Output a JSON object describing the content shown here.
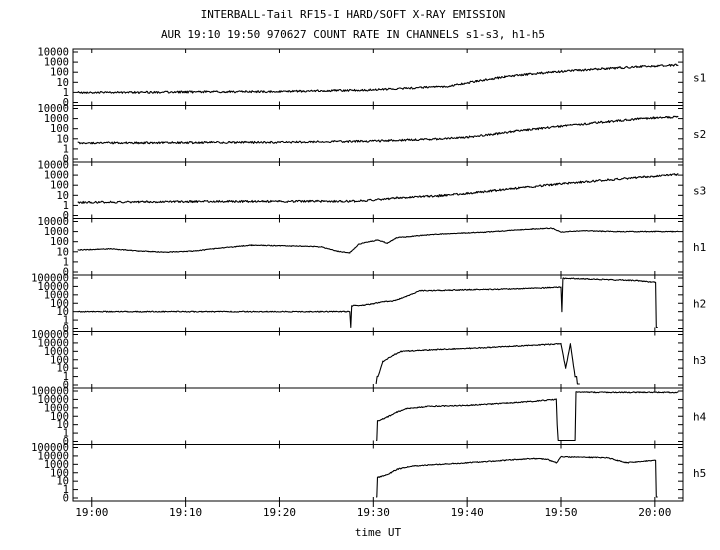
{
  "chart_data": {
    "type": "line",
    "title": "INTERBALL-Tail RF15-I HARD/SOFT X-RAY EMISSION",
    "subtitle": "AUR 19:10 19:50 970627  COUNT RATE IN CHANNELS s1-s3, h1-h5",
    "xlabel": "time UT",
    "x_range_minutes": [
      -2,
      63
    ],
    "x_ticks": [
      {
        "label": "19:00",
        "minute": 0
      },
      {
        "label": "19:10",
        "minute": 10
      },
      {
        "label": "19:20",
        "minute": 20
      },
      {
        "label": "19:30",
        "minute": 30
      },
      {
        "label": "19:40",
        "minute": 40
      },
      {
        "label": "19:50",
        "minute": 50
      },
      {
        "label": "20:00",
        "minute": 60
      }
    ],
    "y_scale": "log",
    "panels": [
      {
        "name": "s1",
        "y_ticks": [
          "10000",
          "1000",
          "100",
          "10",
          "1",
          "0"
        ],
        "points": [
          [
            -1.5,
            1
          ],
          [
            5,
            1
          ],
          [
            10,
            1.1
          ],
          [
            20,
            1.2
          ],
          [
            30,
            1.8
          ],
          [
            38,
            4
          ],
          [
            41,
            13
          ],
          [
            44,
            35
          ],
          [
            47,
            70
          ],
          [
            52,
            160
          ],
          [
            57,
            300
          ],
          [
            60,
            420
          ],
          [
            62.5,
            520
          ]
        ]
      },
      {
        "name": "s2",
        "y_ticks": [
          "10000",
          "1000",
          "100",
          "10",
          "1",
          "0"
        ],
        "points": [
          [
            -1.5,
            4
          ],
          [
            5,
            4
          ],
          [
            10,
            4.2
          ],
          [
            20,
            4.5
          ],
          [
            30,
            6
          ],
          [
            36,
            9
          ],
          [
            40,
            14
          ],
          [
            43,
            30
          ],
          [
            45,
            55
          ],
          [
            48,
            110
          ],
          [
            51,
            220
          ],
          [
            55,
            500
          ],
          [
            58,
            900
          ],
          [
            60,
            1200
          ],
          [
            62.5,
            1500
          ]
        ]
      },
      {
        "name": "s3",
        "y_ticks": [
          "10000",
          "1000",
          "100",
          "10",
          "1",
          "0"
        ],
        "points": [
          [
            -1.5,
            2
          ],
          [
            5,
            2.2
          ],
          [
            10,
            2.4
          ],
          [
            20,
            2.5
          ],
          [
            28,
            2.6
          ],
          [
            31,
            4
          ],
          [
            33,
            6
          ],
          [
            37,
            9
          ],
          [
            40,
            15
          ],
          [
            43,
            30
          ],
          [
            46,
            60
          ],
          [
            49,
            110
          ],
          [
            52,
            200
          ],
          [
            56,
            400
          ],
          [
            60,
            800
          ],
          [
            62.5,
            1200
          ]
        ]
      },
      {
        "name": "h1",
        "y_ticks": [
          "10000",
          "1000",
          "100",
          "10",
          "1",
          "0"
        ],
        "points": [
          [
            -1.5,
            15
          ],
          [
            2,
            20
          ],
          [
            5,
            12
          ],
          [
            8,
            9
          ],
          [
            11,
            12
          ],
          [
            14,
            25
          ],
          [
            17,
            45
          ],
          [
            20,
            40
          ],
          [
            23,
            35
          ],
          [
            24.5,
            30
          ],
          [
            26,
            12
          ],
          [
            27.5,
            8
          ],
          [
            28.5,
            60
          ],
          [
            30.5,
            150
          ],
          [
            31.5,
            70
          ],
          [
            32.5,
            250
          ],
          [
            36,
            500
          ],
          [
            42,
            900
          ],
          [
            47,
            1800
          ],
          [
            49,
            2200
          ],
          [
            50,
            900
          ],
          [
            52,
            1200
          ],
          [
            56,
            1000
          ],
          [
            60,
            1000
          ],
          [
            62.5,
            1000
          ]
        ]
      },
      {
        "name": "h2",
        "y_ticks": [
          "100000",
          "10000",
          "1000",
          "100",
          "10",
          "1",
          "0"
        ],
        "points": [
          [
            -1.5,
            10
          ],
          [
            27.5,
            10
          ],
          [
            27.6,
            0.5
          ],
          [
            27.7,
            50
          ],
          [
            29,
            60
          ],
          [
            30,
            90
          ],
          [
            31,
            150
          ],
          [
            32,
            180
          ],
          [
            33,
            400
          ],
          [
            35,
            3000
          ],
          [
            40,
            4000
          ],
          [
            45,
            5000
          ],
          [
            50,
            8000
          ],
          [
            50.1,
            10
          ],
          [
            50.2,
            90000
          ],
          [
            51,
            90000
          ],
          [
            54,
            70000
          ],
          [
            58,
            50000
          ],
          [
            60,
            30000
          ],
          [
            60.3,
            0.5
          ]
        ]
      },
      {
        "name": "h3",
        "y_ticks": [
          "100000",
          "10000",
          "1000",
          "100",
          "10",
          "1",
          "0"
        ],
        "points": [
          [
            30.3,
            0.5
          ],
          [
            30.5,
            1
          ],
          [
            31,
            60
          ],
          [
            32,
            300
          ],
          [
            33,
            1000
          ],
          [
            36,
            1500
          ],
          [
            40,
            2200
          ],
          [
            45,
            4000
          ],
          [
            48,
            6000
          ],
          [
            50,
            8000
          ],
          [
            50.5,
            10
          ],
          [
            51,
            8000
          ],
          [
            51.5,
            1
          ],
          [
            52,
            0.5
          ]
        ]
      },
      {
        "name": "h4",
        "y_ticks": [
          "100000",
          "10000",
          "1000",
          "100",
          "10",
          "1",
          "0"
        ],
        "points": [
          [
            30.3,
            0.5
          ],
          [
            30.6,
            30
          ],
          [
            31.5,
            80
          ],
          [
            32.5,
            300
          ],
          [
            33.5,
            800
          ],
          [
            36,
            1500
          ],
          [
            40,
            2000
          ],
          [
            44,
            3500
          ],
          [
            47,
            6000
          ],
          [
            49.5,
            10000
          ],
          [
            49.6,
            10
          ],
          [
            49.8,
            0.5
          ],
          [
            51.5,
            0.5
          ],
          [
            51.6,
            80000
          ],
          [
            54,
            70000
          ],
          [
            58,
            70000
          ],
          [
            62.5,
            70000
          ]
        ]
      },
      {
        "name": "h5",
        "y_ticks": [
          "100000",
          "10000",
          "1000",
          "100",
          "10",
          "1",
          "0"
        ],
        "points": [
          [
            30.3,
            0.5
          ],
          [
            30.6,
            30
          ],
          [
            31.5,
            60
          ],
          [
            32.5,
            250
          ],
          [
            34,
            600
          ],
          [
            37,
            1000
          ],
          [
            40,
            1500
          ],
          [
            44,
            3000
          ],
          [
            47,
            5000
          ],
          [
            48.5,
            4000
          ],
          [
            49.5,
            1500
          ],
          [
            50,
            8000
          ],
          [
            53,
            7000
          ],
          [
            55,
            6000
          ],
          [
            56,
            3000
          ],
          [
            57,
            1500
          ],
          [
            58,
            2000
          ],
          [
            60,
            3000
          ],
          [
            60.3,
            0.5
          ]
        ]
      }
    ]
  }
}
